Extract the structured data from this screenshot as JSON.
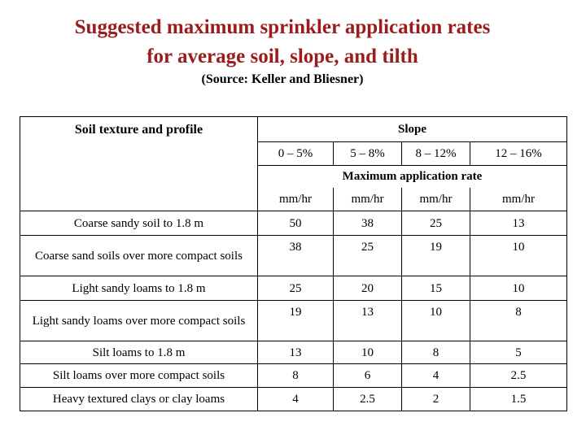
{
  "title_line1": "Suggested maximum sprinkler application rates",
  "title_line2": "for average soil, slope, and tilth",
  "source": "(Source: Keller and Bliesner)",
  "header": {
    "soil": "Soil texture and profile",
    "slope": "Slope",
    "max_rate": "Maximum application rate"
  },
  "slopes": [
    "0 – 5%",
    "5 – 8%",
    "8 – 12%",
    "12 – 16%"
  ],
  "units": [
    "mm/hr",
    "mm/hr",
    "mm/hr",
    "mm/hr"
  ],
  "rows": [
    {
      "label": "Coarse sandy  soil to 1.8 m",
      "values": [
        "50",
        "38",
        "25",
        "13"
      ]
    },
    {
      "label": "Coarse sand soils over more compact soils",
      "values": [
        "38",
        "25",
        "19",
        "10"
      ]
    },
    {
      "label": "Light sandy loams to 1.8 m",
      "values": [
        "25",
        "20",
        "15",
        "10"
      ]
    },
    {
      "label": "Light sandy loams over more compact soils",
      "values": [
        "19",
        "13",
        "10",
        "8"
      ]
    },
    {
      "label": "Silt loams to 1.8 m",
      "values": [
        "13",
        "10",
        "8",
        "5"
      ]
    },
    {
      "label": "Silt loams over more compact soils",
      "values": [
        "8",
        "6",
        "4",
        "2.5"
      ]
    },
    {
      "label": "Heavy textured clays or clay loams",
      "values": [
        "4",
        "2.5",
        "2",
        "1.5"
      ]
    }
  ]
}
